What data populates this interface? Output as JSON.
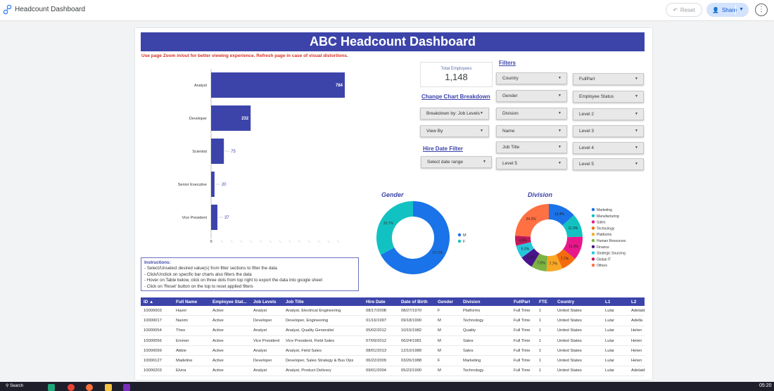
{
  "app": {
    "title": "Headcount Dashboard",
    "reset_label": "Reset",
    "share_label": "Share"
  },
  "report": {
    "banner": "ABC Headcount Dashboard",
    "notice": "Use page Zoom in/out for better viewing experience. Refresh page in case of visual distortions."
  },
  "kpi": {
    "label": "Total Employees",
    "value": "1,148"
  },
  "filters": {
    "title": "Filters",
    "change_breakdown": "Change Chart Breakdown",
    "hire_date_filter": "Hire Date Filter",
    "breakdown_by": "Breakdown by: Job Levels",
    "view_by": "View By",
    "date_range": "Select date range",
    "country": "Country",
    "gender": "Gender",
    "division": "Division",
    "name": "Name",
    "job_title": "Job Title",
    "level5a": "Level 5",
    "fullpart": "FullPart",
    "employee_status": "Employee Status",
    "level2": "Level 2",
    "level3": "Level 3",
    "level4": "Level 4",
    "level5b": "Level 5"
  },
  "chart_data": [
    {
      "type": "bar",
      "orientation": "horizontal",
      "categories": [
        "Analyst",
        "Developer",
        "Scientist",
        "Senior Executive",
        "Vice President"
      ],
      "values": [
        784,
        232,
        75,
        20,
        37
      ],
      "color": "#3c44aa"
    },
    {
      "type": "pie",
      "title": "Gender",
      "labels": [
        "M",
        "F"
      ],
      "values": [
        67.3,
        32.7
      ],
      "colors": [
        "#1a73e8",
        "#12c2c2"
      ]
    },
    {
      "type": "pie",
      "title": "Division",
      "labels": [
        "Marketing",
        "Manufacturing",
        "Sales",
        "Technology",
        "Platforms",
        "Human Resources",
        "Finance",
        "Strategic Sourcing",
        "Global IT",
        "Others"
      ],
      "values": [
        13.4,
        11.3,
        11.3,
        7.7,
        7.7,
        7.5,
        6.4,
        6.3,
        4.8,
        24.2
      ],
      "value_labels": [
        "13.4%",
        "11.3%",
        "11.3%",
        "7.7%",
        "7.7%",
        "7.5%",
        "6.4%",
        "6.3%",
        "4.8%",
        "24.2%"
      ],
      "colors": [
        "#1a73e8",
        "#12c2c2",
        "#e8178a",
        "#f46b0e",
        "#f9a825",
        "#7cb342",
        "#4a148c",
        "#26c6da",
        "#c2185b",
        "#ff7043"
      ]
    }
  ],
  "instructions": {
    "title": "Instructions",
    "lines": [
      "- Select/Unselect desired value(s) from filter sections to filter the data",
      "- Click/Unclick on specific bar charts also filters the data",
      "- Hover on Table below, click on three dots from top right to export the data into google sheet",
      "- Click on 'Reset' button on the top to reset applied filters"
    ]
  },
  "table": {
    "headers": [
      "ID ▲",
      "Full Name",
      "Employee Stat...",
      "Job Levels",
      "Job Title",
      "Hire Date",
      "Date of Birth",
      "Gender",
      "Division",
      "FullPart",
      "FTE",
      "Country",
      "L1",
      "L2"
    ],
    "rows": [
      [
        "10000003",
        "Hazel",
        "Active",
        "Analyst",
        "Analyst, Electrical Engineering",
        "08/17/2008",
        "08/27/1970",
        "F",
        "Platforms",
        "Full Time",
        "1",
        "United States",
        "Lular",
        "Adelaid"
      ],
      [
        "10000017",
        "Naomi",
        "Active",
        "Developer",
        "Developer, Engineering",
        "01/16/1997",
        "09/18/1990",
        "M",
        "Technology",
        "Full Time",
        "1",
        "United States",
        "Lular",
        "Adella"
      ],
      [
        "10000054",
        "Theo",
        "Active",
        "Analyst",
        "Analyst, Quality Generalist",
        "05/02/2012",
        "10/15/1982",
        "M",
        "Quality",
        "Full Time",
        "1",
        "United States",
        "Lular",
        "Helen"
      ],
      [
        "10000056",
        "Emmer",
        "Active",
        "Vice President",
        "Vice President, Field Sales",
        "07/09/2012",
        "06/24/1981",
        "M",
        "Sales",
        "Full Time",
        "1",
        "United States",
        "Lular",
        "Helen"
      ],
      [
        "10000099",
        "Abbie",
        "Active",
        "Analyst",
        "Analyst, Field Sales",
        "08/01/2013",
        "12/10/1989",
        "M",
        "Sales",
        "Full Time",
        "1",
        "United States",
        "Lular",
        "Helen"
      ],
      [
        "10000127",
        "Madeline",
        "Active",
        "Developer",
        "Developer, Sales Strategy & Bus Ops",
        "06/22/2009",
        "03/26/1988",
        "F",
        "Marketing",
        "Full Time",
        "1",
        "United States",
        "Lular",
        "Helen"
      ],
      [
        "10000203",
        "Elvira",
        "Active",
        "Analyst",
        "Analyst, Product Delivery",
        "09/01/2004",
        "05/23/1990",
        "M",
        "Technology",
        "Full Time",
        "1",
        "United States",
        "Lular",
        "Adelaid"
      ]
    ]
  },
  "taskbar": {
    "search_label": "Search",
    "clock": "05:20"
  }
}
